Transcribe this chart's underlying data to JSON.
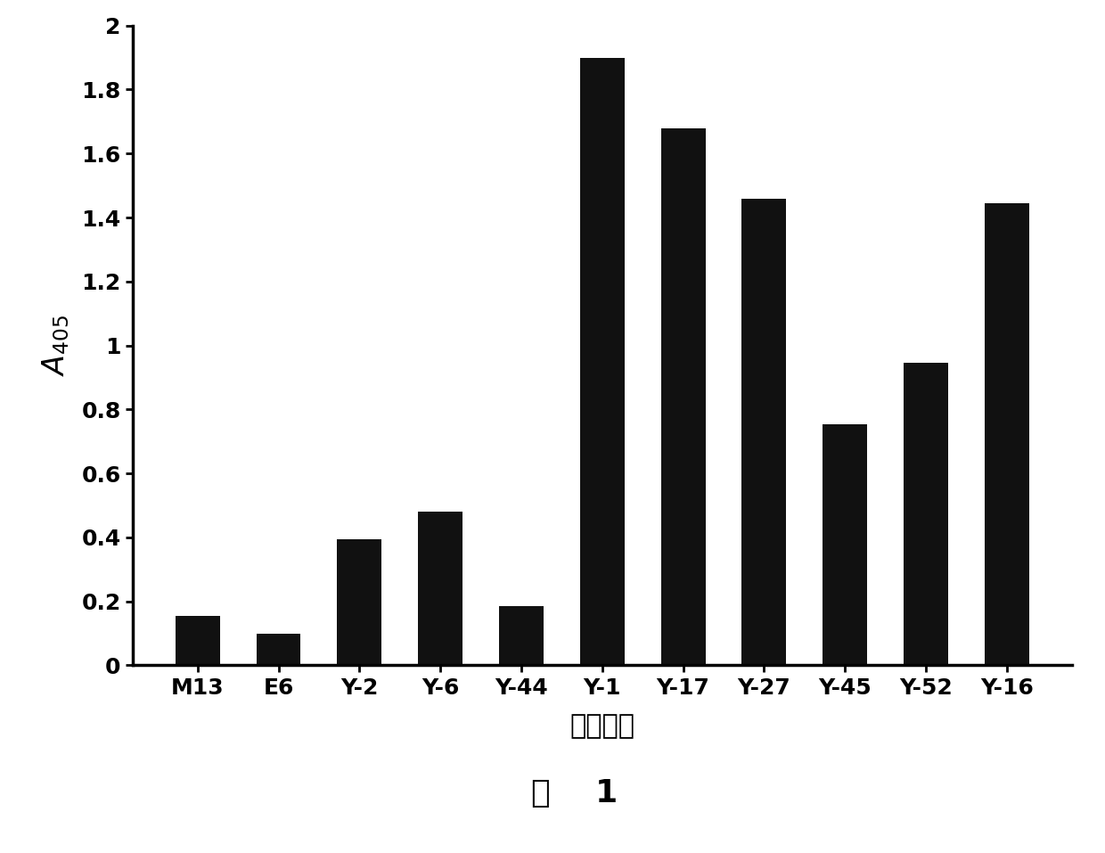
{
  "categories": [
    "M13",
    "E6",
    "Y-2",
    "Y-6",
    "Y-44",
    "Y-1",
    "Y-17",
    "Y-27",
    "Y-45",
    "Y-52",
    "Y-16"
  ],
  "values": [
    0.155,
    0.1,
    0.395,
    0.48,
    0.185,
    1.9,
    1.68,
    1.46,
    0.755,
    0.945,
    1.445
  ],
  "bar_color": "#111111",
  "ylabel": "$A_{405}$",
  "xlabel": "克隆编号",
  "caption": "图    1",
  "ylim": [
    0,
    2.0
  ],
  "yticks": [
    0,
    0.2,
    0.4,
    0.6,
    0.8,
    1.0,
    1.2,
    1.4,
    1.6,
    1.8,
    2.0
  ],
  "ytick_labels": [
    "0",
    "0.2",
    "0.4",
    "0.6",
    "0.8",
    "1",
    "1.2",
    "1.4",
    "1.6",
    "1.8",
    "2"
  ],
  "tick_fontsize": 18,
  "label_fontsize": 20,
  "caption_fontsize": 26,
  "bar_width": 0.55,
  "background_color": "#ffffff",
  "spine_linewidth": 2.5
}
